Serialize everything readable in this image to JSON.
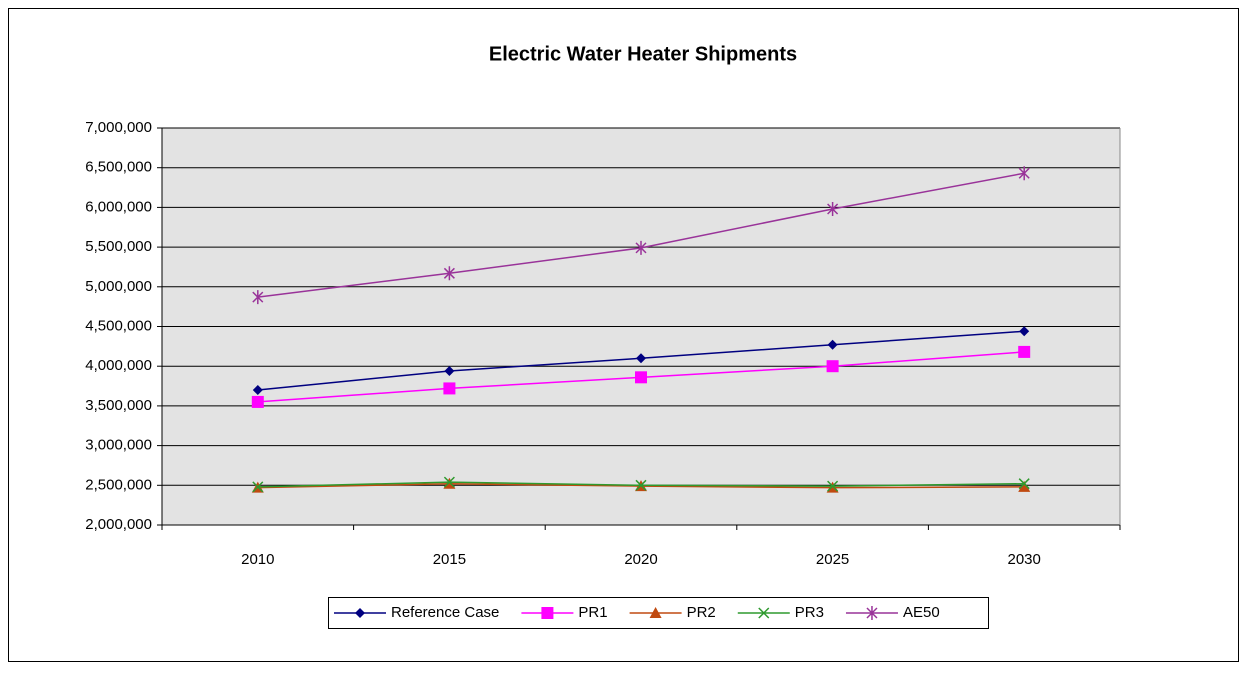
{
  "chart_data": {
    "type": "line",
    "title": "Electric Water Heater Shipments",
    "categories": [
      "2010",
      "2015",
      "2020",
      "2025",
      "2030"
    ],
    "ylim": [
      2000000,
      7000000
    ],
    "yticks": [
      {
        "value": 2000000,
        "label": "2,000,000"
      },
      {
        "value": 2500000,
        "label": "2,500,000"
      },
      {
        "value": 3000000,
        "label": "3,000,000"
      },
      {
        "value": 3500000,
        "label": "3,500,000"
      },
      {
        "value": 4000000,
        "label": "4,000,000"
      },
      {
        "value": 4500000,
        "label": "4,500,000"
      },
      {
        "value": 5000000,
        "label": "5,000,000"
      },
      {
        "value": 5500000,
        "label": "5,500,000"
      },
      {
        "value": 6000000,
        "label": "6,000,000"
      },
      {
        "value": 6500000,
        "label": "6,500,000"
      },
      {
        "value": 7000000,
        "label": "7,000,000"
      }
    ],
    "grid": true,
    "legend": "bottom",
    "series": [
      {
        "name": "Reference Case",
        "color": "#000080",
        "marker": "diamond",
        "values": [
          3700000,
          3940000,
          4100000,
          4270000,
          4440000
        ]
      },
      {
        "name": "PR1",
        "color": "#ff00ff",
        "marker": "square",
        "values": [
          3550000,
          3720000,
          3860000,
          4000000,
          4180000
        ]
      },
      {
        "name": "PR2",
        "color": "#c04a10",
        "marker": "triangle",
        "values": [
          2470000,
          2520000,
          2490000,
          2470000,
          2480000
        ]
      },
      {
        "name": "PR3",
        "color": "#2e9a2e",
        "marker": "x",
        "values": [
          2480000,
          2540000,
          2500000,
          2490000,
          2520000
        ]
      },
      {
        "name": "AE50",
        "color": "#993399",
        "marker": "star",
        "values": [
          4870000,
          5170000,
          5490000,
          5980000,
          6430000
        ]
      }
    ]
  }
}
